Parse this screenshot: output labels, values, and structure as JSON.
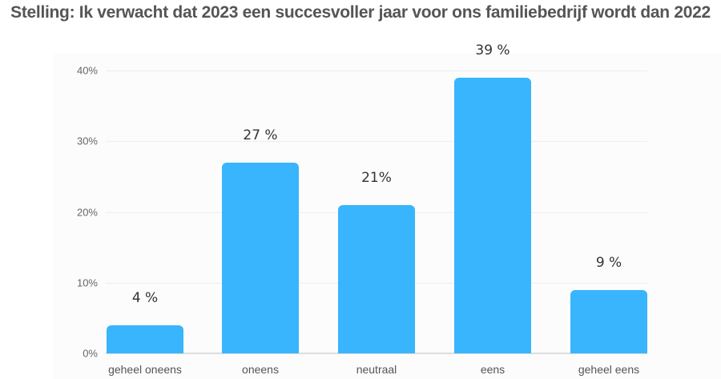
{
  "title": "Stelling: Ik verwacht dat 2023 een succesvoller jaar voor ons familiebedrijf wordt dan 2022",
  "colors": {
    "bar": "#38b5fc",
    "title": "#555555",
    "grid": "#eeeeee"
  },
  "yaxis": {
    "ticks": [
      "0%",
      "10%",
      "20%",
      "30%",
      "40%"
    ]
  },
  "bars": [
    {
      "category": "geheel oneens",
      "value": 4,
      "label": "4 %"
    },
    {
      "category": "oneens",
      "value": 27,
      "label": "27 %"
    },
    {
      "category": "neutraal",
      "value": 21,
      "label": "21%"
    },
    {
      "category": "eens",
      "value": 39,
      "label": "39 %"
    },
    {
      "category": "geheel eens",
      "value": 9,
      "label": "9 %"
    }
  ],
  "chart_data": {
    "type": "bar",
    "title": "Stelling: Ik verwacht dat 2023 een succesvoller jaar voor ons familiebedrijf wordt dan 2022",
    "categories": [
      "geheel oneens",
      "oneens",
      "neutraal",
      "eens",
      "geheel eens"
    ],
    "values": [
      4,
      27,
      21,
      39,
      9
    ],
    "data_labels": [
      "4 %",
      "27 %",
      "21%",
      "39 %",
      "9 %"
    ],
    "xlabel": "",
    "ylabel": "",
    "yticks": [
      "0%",
      "10%",
      "20%",
      "30%",
      "40%"
    ],
    "ylim": [
      0,
      40
    ],
    "grid": true,
    "legend": null,
    "unit": "%"
  }
}
